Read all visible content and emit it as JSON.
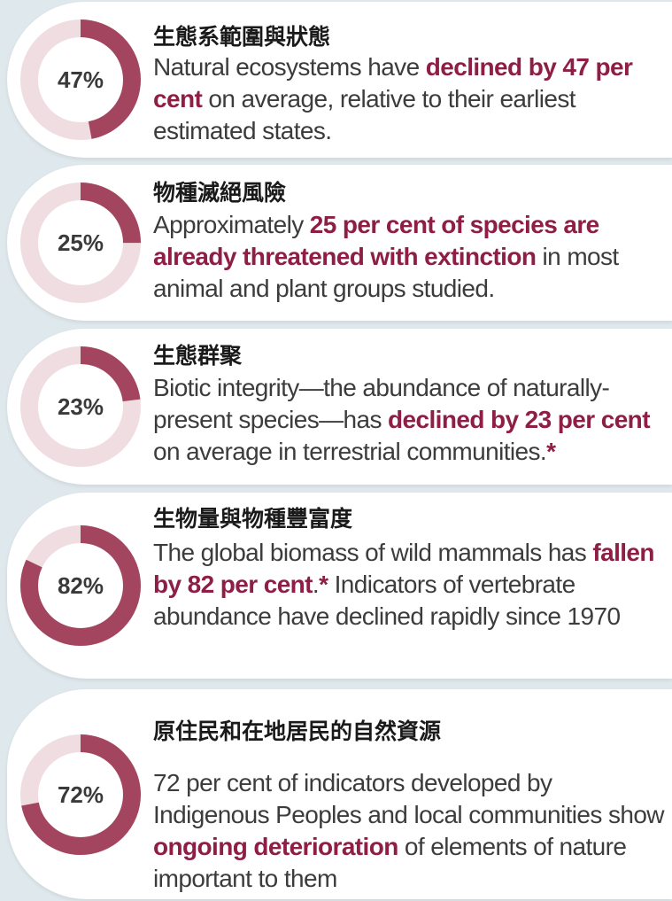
{
  "items": [
    {
      "heading": "生態系範圍與狀態",
      "value": 47,
      "value_label": "47%",
      "color": "#a3455f",
      "track": "#efdde2",
      "text": [
        {
          "text": "Natural ecosystems have "
        },
        {
          "text": "declined by 47 per cent",
          "bold": true
        },
        {
          "text": " on average, relative to their earliest estimated states."
        }
      ]
    },
    {
      "heading": "物種滅絕風險",
      "value": 25,
      "value_label": "25%",
      "color": "#a3455f",
      "track": "#efdde2",
      "text": [
        {
          "text": "Approximately "
        },
        {
          "text": "25 per cent of species are already threatened with extinction",
          "bold": true
        },
        {
          "text": " in most animal and plant groups studied."
        }
      ]
    },
    {
      "heading": "生態群聚",
      "value": 23,
      "value_label": "23%",
      "color": "#a3455f",
      "track": "#efdde2",
      "text": [
        {
          "text": "Biotic integrity—the abundance of naturally-present species—has "
        },
        {
          "text": "declined by 23 per cent",
          "bold": true
        },
        {
          "text": " on average in terrestrial communities."
        },
        {
          "text": "*",
          "bold": true
        }
      ]
    },
    {
      "heading": "生物量與物種豐富度",
      "value": 82,
      "value_label": "82%",
      "color": "#a3455f",
      "track": "#efdde2",
      "text": [
        {
          "text": "The global biomass of wild mammals has "
        },
        {
          "text": "fallen by 82 per cent",
          "bold": true
        },
        {
          "text": "."
        },
        {
          "text": "*",
          "bold": true
        },
        {
          "text": " Indicators of vertebrate abundance have declined rapidly since 1970"
        }
      ]
    },
    {
      "heading": "原住民和在地居民的自然資源",
      "value": 72,
      "value_label": "72%",
      "color": "#a3455f",
      "track": "#efdde2",
      "text": [
        {
          "text": "72 per cent of indicators developed by Indigenous Peoples and local communities show "
        },
        {
          "text": "ongoing deterioration",
          "bold": true
        },
        {
          "text": " of elements of nature important to them"
        }
      ]
    }
  ]
}
